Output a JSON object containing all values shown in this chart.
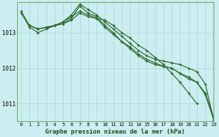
{
  "title": "Graphe pression niveau de la mer (hPa)",
  "background_color": "#cceef0",
  "grid_color": "#aadddd",
  "line_color": "#2d6a2d",
  "xlim": [
    -0.5,
    23
  ],
  "ylim": [
    1010.5,
    1013.85
  ],
  "yticks": [
    1011,
    1012,
    1013
  ],
  "xticks": [
    0,
    1,
    2,
    3,
    4,
    5,
    6,
    7,
    8,
    9,
    10,
    11,
    12,
    13,
    14,
    15,
    16,
    17,
    18,
    19,
    20,
    21,
    22,
    23
  ],
  "series": [
    {
      "x": [
        0,
        1,
        2,
        3,
        4,
        5,
        6,
        7,
        8,
        9,
        10,
        11,
        12,
        13,
        14,
        15,
        16,
        17,
        18,
        19,
        20,
        21
      ],
      "y": [
        1013.6,
        1013.2,
        1013.1,
        1013.15,
        1013.2,
        1013.25,
        1013.35,
        1013.55,
        1013.45,
        1013.4,
        1013.35,
        1013.2,
        1013.0,
        1012.85,
        1012.65,
        1012.5,
        1012.3,
        1012.1,
        1011.85,
        1011.6,
        1011.3,
        1011.0
      ]
    },
    {
      "x": [
        1,
        2,
        3,
        4,
        5,
        6,
        7,
        8,
        9,
        10,
        11,
        12,
        13,
        14,
        15,
        16,
        17,
        18,
        19,
        20,
        21,
        22,
        23
      ],
      "y": [
        1013.2,
        1013.1,
        1013.15,
        1013.2,
        1013.25,
        1013.4,
        1013.75,
        1013.55,
        1013.45,
        1013.2,
        1013.0,
        1012.75,
        1012.55,
        1012.35,
        1012.2,
        1012.1,
        1012.05,
        1012.0,
        1011.85,
        1011.7,
        1011.6,
        1011.3,
        1010.6
      ]
    },
    {
      "x": [
        1,
        2,
        3,
        4,
        5,
        6,
        7,
        8,
        9,
        10,
        11,
        12,
        13,
        14,
        15,
        16,
        17,
        18,
        19,
        20,
        21,
        22,
        23
      ],
      "y": [
        1013.2,
        1013.1,
        1013.15,
        1013.2,
        1013.3,
        1013.5,
        1013.8,
        1013.65,
        1013.5,
        1013.3,
        1013.1,
        1012.9,
        1012.7,
        1012.5,
        1012.35,
        1012.25,
        1012.2,
        1012.15,
        1012.1,
        1012.0,
        1011.9,
        1011.55,
        1010.55
      ]
    },
    {
      "x": [
        0,
        1,
        2,
        3,
        4,
        5,
        6,
        7,
        8,
        9,
        10,
        11,
        12,
        13,
        14,
        15,
        16,
        17,
        18,
        19,
        20,
        21,
        22,
        23
      ],
      "y": [
        1013.55,
        1013.15,
        1013.0,
        1013.1,
        1013.2,
        1013.3,
        1013.45,
        1013.6,
        1013.5,
        1013.4,
        1013.15,
        1012.95,
        1012.75,
        1012.6,
        1012.4,
        1012.25,
        1012.15,
        1012.05,
        1012.0,
        1011.85,
        1011.75,
        1011.6,
        1011.25,
        1010.55
      ]
    }
  ]
}
